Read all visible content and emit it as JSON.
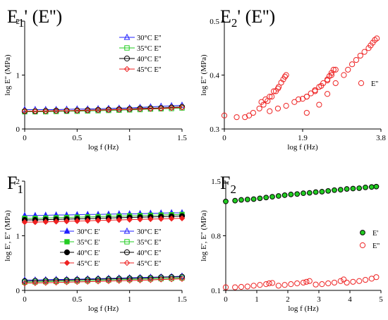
{
  "chart_data": [
    {
      "id": "E1",
      "type": "line",
      "title": "E",
      "title_sub": "1",
      "title_rest": "' (E'')",
      "xlabel": "log f (Hz)",
      "ylabel": "log E'' (MPa)",
      "xlim": [
        0,
        1.5
      ],
      "ylim": [
        0,
        2
      ],
      "xticks": [
        "0",
        "0.5",
        "1",
        "1.5"
      ],
      "xtick_values": [
        0,
        0.5,
        1,
        1.5
      ],
      "yticks": [
        "0",
        "1",
        "2"
      ],
      "ytick_values": [
        0,
        1,
        2
      ],
      "legend": "top-right",
      "x": [
        0,
        0.1,
        0.2,
        0.3,
        0.4,
        0.5,
        0.6,
        0.7,
        0.8,
        0.9,
        1.0,
        1.1,
        1.2,
        1.3,
        1.4,
        1.5
      ],
      "series": [
        {
          "name": "30°C  E''",
          "color": "#2020ff",
          "marker": "tri-open",
          "values": [
            0.36,
            0.36,
            0.36,
            0.36,
            0.365,
            0.37,
            0.37,
            0.375,
            0.38,
            0.385,
            0.39,
            0.4,
            0.41,
            0.42,
            0.43,
            0.44
          ]
        },
        {
          "name": "35°C  E''",
          "color": "#22cc22",
          "marker": "sq-open",
          "values": [
            0.32,
            0.32,
            0.32,
            0.325,
            0.33,
            0.33,
            0.335,
            0.34,
            0.345,
            0.35,
            0.355,
            0.36,
            0.37,
            0.375,
            0.38,
            0.39
          ]
        },
        {
          "name": "40°C  E''",
          "color": "#000000",
          "marker": "circ-open",
          "values": [
            0.33,
            0.33,
            0.335,
            0.34,
            0.34,
            0.345,
            0.35,
            0.355,
            0.36,
            0.365,
            0.37,
            0.38,
            0.385,
            0.39,
            0.4,
            0.41
          ]
        },
        {
          "name": "45°C  E''",
          "color": "#ee2222",
          "marker": "dia-open",
          "values": [
            0.33,
            0.33,
            0.33,
            0.335,
            0.34,
            0.34,
            0.345,
            0.35,
            0.355,
            0.36,
            0.365,
            0.37,
            0.375,
            0.38,
            0.39,
            0.4
          ]
        }
      ]
    },
    {
      "id": "E2",
      "type": "scatter",
      "title": "E",
      "title_sub": "2",
      "title_rest": "' (E'')",
      "xlabel": "log f (Hz)",
      "ylabel": "log E'' (MPa)",
      "xlim": [
        0,
        3.8
      ],
      "ylim": [
        0.3,
        0.5
      ],
      "xticks": [
        "0",
        "1.9",
        "3.8"
      ],
      "xtick_values": [
        0,
        1.9,
        3.8
      ],
      "yticks": [
        "0.3",
        "0.4",
        "0.5"
      ],
      "ytick_values": [
        0.3,
        0.4,
        0.5
      ],
      "legend": "right",
      "series": [
        {
          "name": "E''",
          "color": "#ee2222",
          "marker": "circ-open",
          "x": [
            0,
            0.3,
            0.5,
            0.6,
            0.7,
            0.85,
            0.95,
            1.05,
            1.15,
            1.25,
            1.32,
            1.38,
            1.43,
            1.47,
            1.5,
            0.9,
            1.0,
            1.1,
            1.2,
            1.3,
            1.1,
            1.3,
            1.5,
            1.7,
            1.9,
            2.0,
            2.1,
            2.2,
            2.3,
            2.4,
            2.5,
            2.55,
            2.6,
            2.65,
            1.8,
            2.0,
            2.2,
            2.35,
            2.5,
            2.6,
            2.7,
            2.0,
            2.3,
            2.5,
            2.7,
            2.9,
            3.0,
            3.1,
            3.2,
            3.3,
            3.4,
            3.5,
            3.55,
            3.6,
            3.65,
            3.7
          ],
          "y": [
            0.325,
            0.322,
            0.322,
            0.325,
            0.33,
            0.338,
            0.345,
            0.352,
            0.36,
            0.37,
            0.378,
            0.386,
            0.392,
            0.397,
            0.4,
            0.35,
            0.355,
            0.36,
            0.37,
            0.375,
            0.333,
            0.338,
            0.343,
            0.35,
            0.356,
            0.36,
            0.366,
            0.372,
            0.378,
            0.385,
            0.392,
            0.398,
            0.404,
            0.41,
            0.355,
            0.36,
            0.37,
            0.38,
            0.39,
            0.4,
            0.41,
            0.33,
            0.345,
            0.365,
            0.385,
            0.4,
            0.41,
            0.42,
            0.428,
            0.436,
            0.443,
            0.45,
            0.455,
            0.46,
            0.465,
            0.468
          ]
        }
      ]
    },
    {
      "id": "F1",
      "type": "line",
      "title": "F",
      "title_sub": "1",
      "title_rest": "",
      "xlabel": "log f (Hz)",
      "ylabel": "log E', E'' (MPa)",
      "xlim": [
        0,
        1.5
      ],
      "ylim": [
        0,
        2
      ],
      "xticks": [
        "0",
        "0.5",
        "1",
        "1.5"
      ],
      "xtick_values": [
        0,
        0.5,
        1,
        1.5
      ],
      "yticks": [
        "0",
        "1",
        "2"
      ],
      "ytick_values": [
        0,
        1,
        2
      ],
      "legend": "center",
      "x": [
        0,
        0.1,
        0.2,
        0.3,
        0.4,
        0.5,
        0.6,
        0.7,
        0.8,
        0.9,
        1.0,
        1.1,
        1.2,
        1.3,
        1.4,
        1.5
      ],
      "series": [
        {
          "name": "30°C  E'",
          "color": "#2020ff",
          "marker": "tri-fill",
          "values": [
            1.37,
            1.37,
            1.375,
            1.38,
            1.38,
            1.385,
            1.39,
            1.39,
            1.395,
            1.4,
            1.4,
            1.405,
            1.41,
            1.415,
            1.42,
            1.42
          ]
        },
        {
          "name": "30°C  E''",
          "color": "#2020ff",
          "marker": "tri-open",
          "values": [
            0.19,
            0.19,
            0.195,
            0.2,
            0.2,
            0.205,
            0.21,
            0.215,
            0.22,
            0.225,
            0.23,
            0.235,
            0.24,
            0.245,
            0.25,
            0.26
          ]
        },
        {
          "name": "35°C  E'",
          "color": "#22cc22",
          "marker": "sq-fill",
          "values": [
            1.32,
            1.32,
            1.325,
            1.33,
            1.335,
            1.34,
            1.345,
            1.35,
            1.355,
            1.36,
            1.365,
            1.37,
            1.375,
            1.38,
            1.385,
            1.39
          ]
        },
        {
          "name": "35°C  E''",
          "color": "#22cc22",
          "marker": "sq-open",
          "values": [
            0.15,
            0.155,
            0.16,
            0.165,
            0.17,
            0.175,
            0.18,
            0.185,
            0.19,
            0.195,
            0.2,
            0.205,
            0.21,
            0.215,
            0.22,
            0.23
          ]
        },
        {
          "name": "40°C  E'",
          "color": "#000000",
          "marker": "circ-fill",
          "values": [
            1.29,
            1.29,
            1.295,
            1.3,
            1.305,
            1.31,
            1.315,
            1.32,
            1.325,
            1.33,
            1.335,
            1.34,
            1.345,
            1.35,
            1.355,
            1.36
          ]
        },
        {
          "name": "40°C  E''",
          "color": "#000000",
          "marker": "circ-open",
          "values": [
            0.17,
            0.175,
            0.18,
            0.185,
            0.19,
            0.195,
            0.2,
            0.205,
            0.21,
            0.215,
            0.22,
            0.225,
            0.23,
            0.24,
            0.245,
            0.25
          ]
        },
        {
          "name": "45°C  E'",
          "color": "#ee2222",
          "marker": "dia-fill",
          "values": [
            1.25,
            1.25,
            1.255,
            1.26,
            1.265,
            1.27,
            1.275,
            1.28,
            1.285,
            1.29,
            1.295,
            1.3,
            1.305,
            1.31,
            1.315,
            1.32
          ]
        },
        {
          "name": "45°C  E''",
          "color": "#ee2222",
          "marker": "dia-open",
          "values": [
            0.13,
            0.135,
            0.14,
            0.145,
            0.15,
            0.155,
            0.16,
            0.165,
            0.17,
            0.175,
            0.18,
            0.185,
            0.19,
            0.2,
            0.205,
            0.21
          ]
        }
      ]
    },
    {
      "id": "F2",
      "type": "scatter",
      "title": "F",
      "title_sub": "2",
      "title_rest": "",
      "xlabel": "log f (Hz)",
      "ylabel": "log E', E'' (MPa)",
      "xlim": [
        0,
        5
      ],
      "ylim": [
        0.1,
        1.5
      ],
      "xticks": [
        "0",
        "1",
        "2",
        "3",
        "4",
        "5"
      ],
      "xtick_values": [
        0,
        1,
        2,
        3,
        4,
        5
      ],
      "yticks": [
        "0.1",
        "0.8",
        "1.5"
      ],
      "ytick_values": [
        0.1,
        0.8,
        1.5
      ],
      "legend": "right",
      "series": [
        {
          "name": "E'",
          "color": "#22cc22",
          "marker": "circ-fill-dark",
          "x": [
            0,
            0.3,
            0.5,
            0.7,
            0.9,
            1.1,
            1.3,
            1.5,
            1.7,
            1.9,
            2.1,
            2.3,
            2.5,
            2.7,
            2.9,
            3.1,
            3.3,
            3.5,
            3.7,
            3.9,
            4.1,
            4.3,
            4.5,
            4.7,
            4.85
          ],
          "y": [
            1.24,
            1.25,
            1.26,
            1.265,
            1.27,
            1.28,
            1.29,
            1.3,
            1.31,
            1.32,
            1.33,
            1.335,
            1.345,
            1.35,
            1.36,
            1.365,
            1.375,
            1.385,
            1.39,
            1.4,
            1.405,
            1.41,
            1.42,
            1.425,
            1.43
          ]
        },
        {
          "name": "E''",
          "color": "#ee2222",
          "marker": "circ-open",
          "x": [
            0,
            0.3,
            0.5,
            0.7,
            0.9,
            1.1,
            1.3,
            1.4,
            1.5,
            1.7,
            1.9,
            2.1,
            2.3,
            2.5,
            2.6,
            2.7,
            2.9,
            3.1,
            3.3,
            3.5,
            3.7,
            3.8,
            3.9,
            4.1,
            4.3,
            4.5,
            4.7,
            4.85
          ],
          "y": [
            0.14,
            0.14,
            0.145,
            0.15,
            0.16,
            0.17,
            0.18,
            0.19,
            0.195,
            0.16,
            0.17,
            0.18,
            0.19,
            0.2,
            0.21,
            0.22,
            0.175,
            0.18,
            0.19,
            0.2,
            0.22,
            0.24,
            0.2,
            0.21,
            0.22,
            0.235,
            0.25,
            0.27
          ]
        }
      ]
    }
  ]
}
